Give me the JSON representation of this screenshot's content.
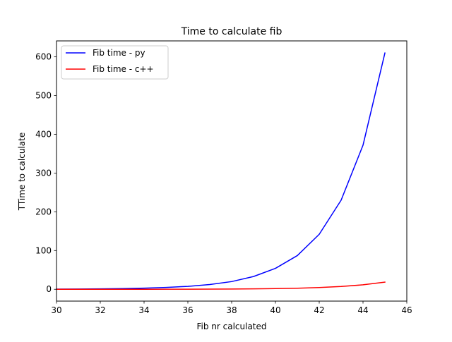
{
  "chart_data": {
    "type": "line",
    "title": "Time to calculate fib",
    "xlabel": "Fib nr calculated",
    "ylabel": "TTime to calculate",
    "xlim": [
      30,
      46
    ],
    "ylim": [
      -30.5,
      641.2
    ],
    "xticks": [
      30,
      32,
      34,
      36,
      38,
      40,
      42,
      44,
      46
    ],
    "yticks": [
      0,
      100,
      200,
      300,
      400,
      500,
      600
    ],
    "grid": false,
    "legend_position": "top-left",
    "x": [
      30,
      31,
      32,
      33,
      34,
      35,
      36,
      37,
      38,
      39,
      40,
      41,
      42,
      43,
      44,
      45
    ],
    "series": [
      {
        "name": "Fib time - py",
        "color": "#0000ff",
        "values": [
          0.4,
          0.7,
          1.1,
          1.8,
          2.9,
          4.7,
          7.6,
          12.3,
          19.9,
          33,
          54,
          87,
          142,
          230,
          372,
          610
        ]
      },
      {
        "name": "Fib time - c++",
        "color": "#ff0000",
        "values": [
          0.01,
          0.02,
          0.04,
          0.06,
          0.1,
          0.16,
          0.26,
          0.4,
          0.65,
          1.05,
          1.7,
          2.8,
          4.5,
          7.2,
          11.5,
          18.5
        ]
      }
    ]
  }
}
